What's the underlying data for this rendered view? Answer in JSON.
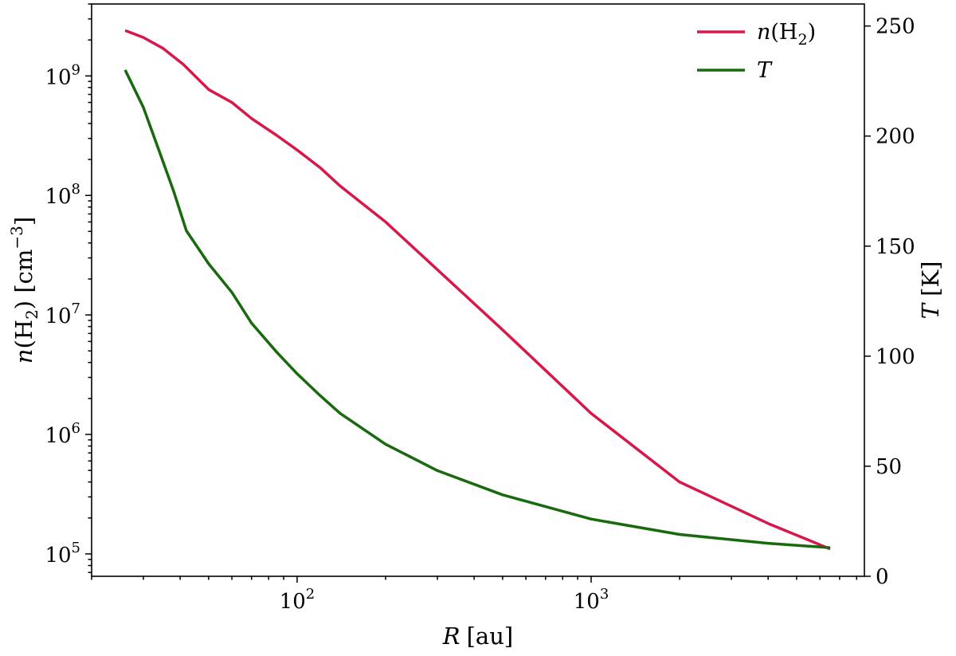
{
  "chart_data": {
    "type": "line",
    "title": "",
    "xlabel": {
      "symbol": "R",
      "unit": "[au]"
    },
    "ylabel_left": {
      "symbol": "n",
      "species": "(H",
      "sub": "2",
      "close": ")",
      "unit_open": " [cm",
      "unit_sup": "−3",
      "unit_close": "]"
    },
    "ylabel_right": {
      "symbol": "T",
      "unit": " [K]"
    },
    "x_scale": "log",
    "xlim": [
      20,
      8500
    ],
    "y_left_scale": "log",
    "y_left_lim": [
      65000,
      4000000000
    ],
    "y_right_scale": "linear",
    "y_right_lim": [
      0,
      260
    ],
    "x_ticks": [
      {
        "value": 100,
        "base": "10",
        "exp": "2"
      },
      {
        "value": 1000,
        "base": "10",
        "exp": "3"
      }
    ],
    "y_left_ticks": [
      {
        "value": 100000,
        "base": "10",
        "exp": "5"
      },
      {
        "value": 1000000,
        "base": "10",
        "exp": "6"
      },
      {
        "value": 10000000,
        "base": "10",
        "exp": "7"
      },
      {
        "value": 100000000,
        "base": "10",
        "exp": "8"
      },
      {
        "value": 1000000000,
        "base": "10",
        "exp": "9"
      }
    ],
    "y_right_ticks": [
      "0",
      "50",
      "100",
      "150",
      "200",
      "250"
    ],
    "grid": false,
    "legend_position": "top-right",
    "series": [
      {
        "name": "n(H2)",
        "axis": "left",
        "color": "#d6184a",
        "x": [
          26,
          30,
          35,
          41,
          50,
          60,
          70,
          85,
          100,
          120,
          140,
          200,
          500,
          1000,
          2000,
          4000,
          6500
        ],
        "y": [
          2400000000,
          2100000000,
          1700000000,
          1250000000,
          770000000,
          600000000,
          440000000,
          320000000,
          240000000,
          170000000,
          120000000,
          60000000,
          7500000,
          1500000,
          400000,
          180000,
          110000
        ]
      },
      {
        "name": "T",
        "axis": "right",
        "color": "#196a0f",
        "x": [
          26,
          30,
          34,
          38,
          42,
          50,
          60,
          70,
          85,
          100,
          120,
          140,
          200,
          300,
          500,
          1000,
          2000,
          4000,
          6500
        ],
        "y": [
          230,
          213,
          193,
          175,
          157,
          142,
          129,
          115,
          102,
          92,
          82,
          74,
          60,
          48,
          37,
          26,
          19,
          15,
          13
        ]
      }
    ],
    "legend": [
      {
        "symbol": "n",
        "text": "(H",
        "sub": "2",
        "close": ")",
        "color": "#d6184a"
      },
      {
        "symbol": "T",
        "text": "",
        "sub": "",
        "close": "",
        "color": "#196a0f"
      }
    ]
  }
}
